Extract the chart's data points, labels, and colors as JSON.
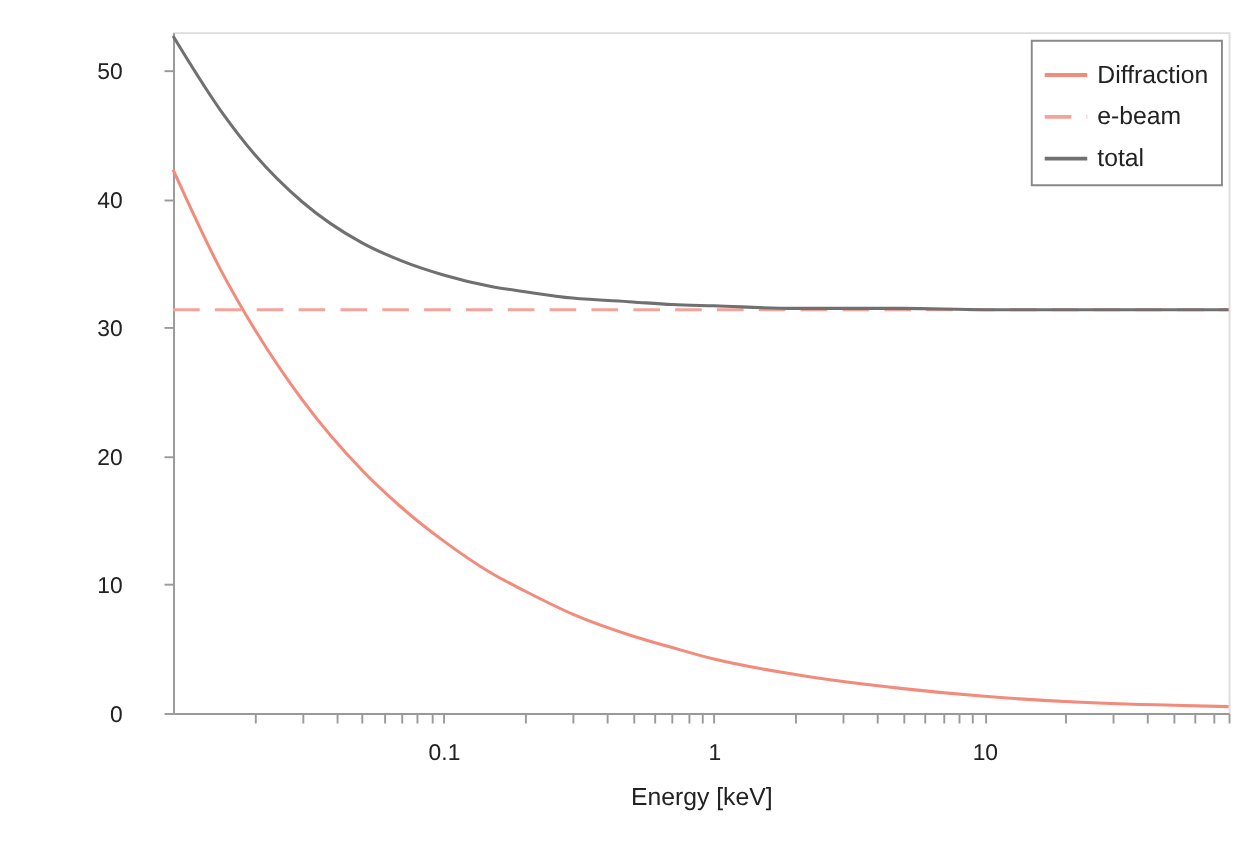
{
  "chart_data": {
    "type": "line",
    "xlabel": "Energy [keV]",
    "log": "x",
    "xlim": [
      0.01,
      80
    ],
    "ylim": [
      0,
      53
    ],
    "xticks": [
      {
        "value": 0.02,
        "label": null
      },
      {
        "value": 0.03,
        "label": null
      },
      {
        "value": 0.04,
        "label": null
      },
      {
        "value": 0.05,
        "label": null
      },
      {
        "value": 0.06,
        "label": null
      },
      {
        "value": 0.07,
        "label": null
      },
      {
        "value": 0.08,
        "label": null
      },
      {
        "value": 0.09,
        "label": null
      },
      0.1,
      {
        "value": 0.2,
        "label": null
      },
      {
        "value": 0.3,
        "label": null
      },
      {
        "value": 0.4,
        "label": null
      },
      {
        "value": 0.5,
        "label": null
      },
      {
        "value": 0.6,
        "label": null
      },
      {
        "value": 0.7,
        "label": null
      },
      {
        "value": 0.8,
        "label": null
      },
      {
        "value": 0.9,
        "label": null
      },
      1,
      {
        "value": 2,
        "label": null
      },
      {
        "value": 3,
        "label": null
      },
      {
        "value": 4,
        "label": null
      },
      {
        "value": 5,
        "label": null
      },
      {
        "value": 6,
        "label": null
      },
      {
        "value": 7,
        "label": null
      },
      {
        "value": 8,
        "label": null
      },
      {
        "value": 9,
        "label": null
      },
      10,
      {
        "value": 20,
        "label": null
      },
      {
        "value": 30,
        "label": null
      },
      {
        "value": 40,
        "label": null
      },
      {
        "value": 50,
        "label": null
      },
      {
        "value": 60,
        "label": null
      },
      {
        "value": 70,
        "label": null
      },
      {
        "value": 80,
        "label": null
      }
    ],
    "yticks": [
      0,
      10,
      20,
      30,
      40,
      50
    ],
    "grid": false,
    "legend": "top right",
    "marker": "none",
    "x": [
      0.01,
      0.015,
      0.02,
      0.03,
      0.05,
      0.07,
      0.1,
      0.15,
      0.2,
      0.3,
      0.5,
      0.7,
      1,
      2,
      5,
      10,
      20,
      50,
      80
    ],
    "series": [
      {
        "name": "Diffraction",
        "color": "#f28b7c",
        "line_style": "solid",
        "values": [
          42.3,
          34.5,
          29.9,
          24.4,
          18.9,
          16.0,
          13.4,
          10.9,
          9.5,
          7.7,
          6.0,
          5.1,
          4.2,
          3.0,
          1.9,
          1.3,
          0.9,
          0.6,
          0.5
        ]
      },
      {
        "name": "e-beam",
        "color": "#f4a29a",
        "line_style": "dashed",
        "x": [
          0.01,
          80
        ],
        "values": [
          31.4,
          31.4
        ]
      },
      {
        "name": "total",
        "color": "#707070",
        "line_style": "solid",
        "values": [
          52.7,
          46.9,
          43.5,
          39.8,
          36.6,
          35.2,
          34.1,
          33.2,
          32.8,
          32.3,
          32.0,
          31.8,
          31.7,
          31.5,
          31.5,
          31.4,
          31.4,
          31.4,
          31.4
        ]
      }
    ]
  }
}
